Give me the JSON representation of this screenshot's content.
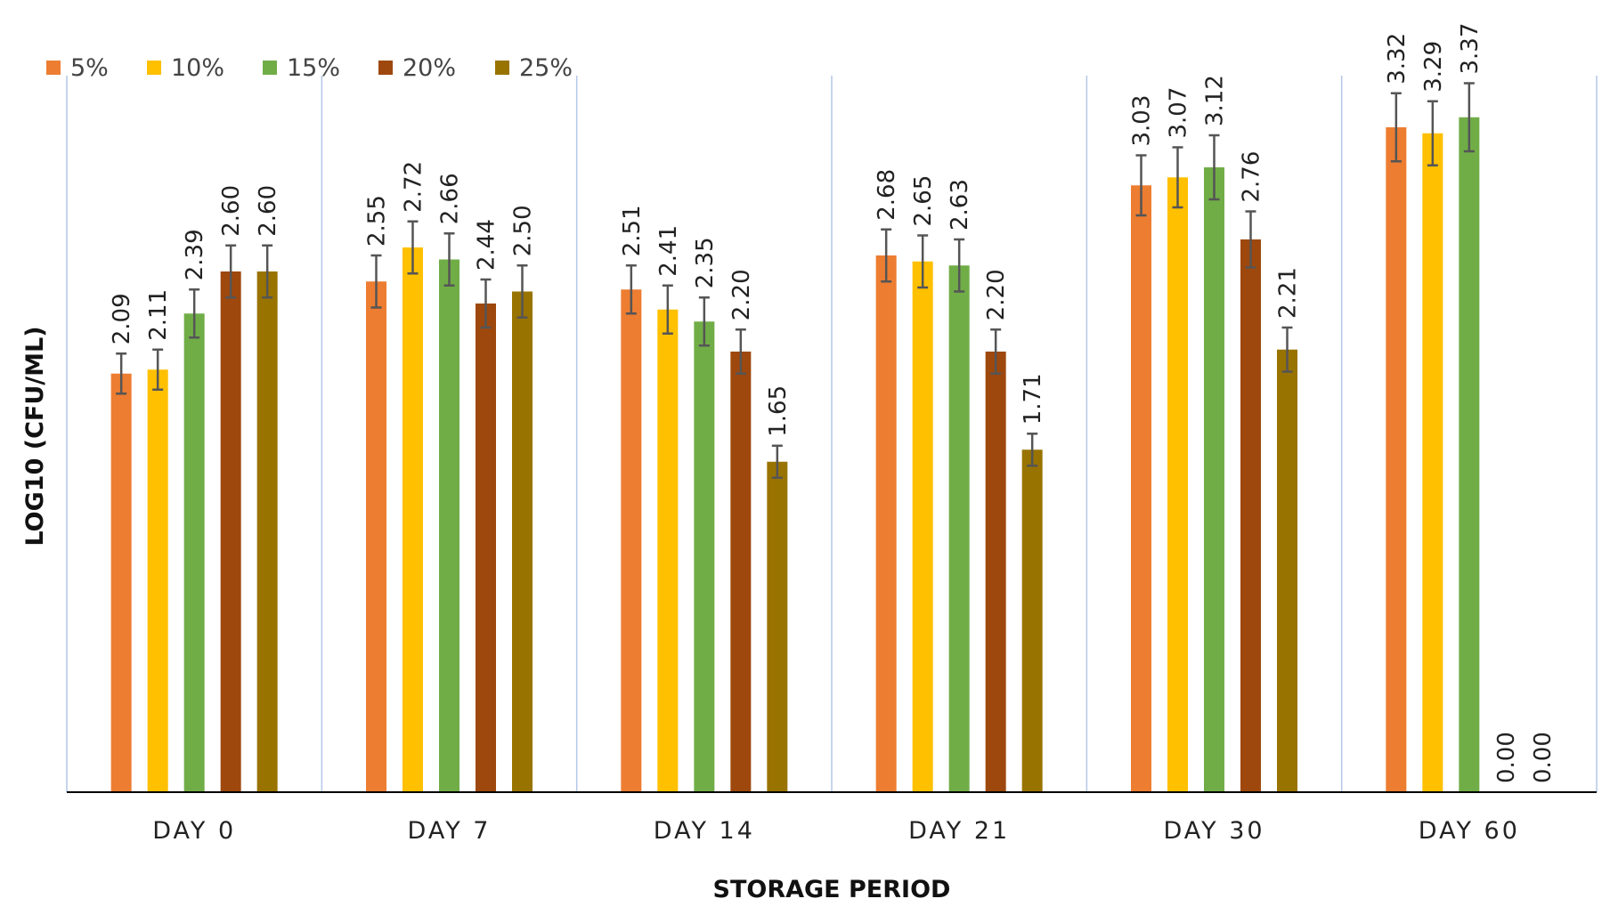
{
  "chart_data": {
    "type": "bar",
    "title": "",
    "xlabel": "STORAGE PERIOD",
    "ylabel": "LOG10 (CFU/ML)",
    "ylim": [
      0,
      3.5
    ],
    "grid": "vertical category separators",
    "legend_position": "top-left",
    "categories": [
      "DAY 0",
      "DAY 7",
      "DAY 14",
      "DAY 21",
      "DAY 30",
      "DAY 60"
    ],
    "series": [
      {
        "name": "5%",
        "color": "#ED7D31",
        "values": [
          2.09,
          2.55,
          2.51,
          2.68,
          3.03,
          3.32
        ],
        "labels": [
          "2.09",
          "2.55",
          "2.51",
          "2.68",
          "3.03",
          "3.32"
        ],
        "errors": [
          0.1,
          0.13,
          0.12,
          0.13,
          0.15,
          0.17
        ]
      },
      {
        "name": "10%",
        "color": "#FFC000",
        "values": [
          2.11,
          2.72,
          2.41,
          2.65,
          3.07,
          3.29
        ],
        "labels": [
          "2.11",
          "2.72",
          "2.41",
          "2.65",
          "3.07",
          "3.29"
        ],
        "errors": [
          0.1,
          0.13,
          0.12,
          0.13,
          0.15,
          0.16
        ]
      },
      {
        "name": "15%",
        "color": "#70AD47",
        "values": [
          2.39,
          2.66,
          2.35,
          2.63,
          3.12,
          3.37
        ],
        "labels": [
          "2.39",
          "2.66",
          "2.35",
          "2.63",
          "3.12",
          "3.37"
        ],
        "errors": [
          0.12,
          0.13,
          0.12,
          0.13,
          0.16,
          0.17
        ]
      },
      {
        "name": "20%",
        "color": "#9E480E",
        "values": [
          2.6,
          2.44,
          2.2,
          2.2,
          2.76,
          0.0
        ],
        "labels": [
          "2.60",
          "2.44",
          "2.20",
          "2.20",
          "2.76",
          "0.00"
        ],
        "errors": [
          0.13,
          0.12,
          0.11,
          0.11,
          0.14,
          0
        ]
      },
      {
        "name": "25%",
        "color": "#997300",
        "values": [
          2.6,
          2.5,
          1.65,
          1.71,
          2.21,
          0.0
        ],
        "labels": [
          "2.60",
          "2.50",
          "1.65",
          "1.71",
          "2.21",
          "0.00"
        ],
        "errors": [
          0.13,
          0.13,
          0.08,
          0.08,
          0.11,
          0
        ]
      }
    ]
  }
}
